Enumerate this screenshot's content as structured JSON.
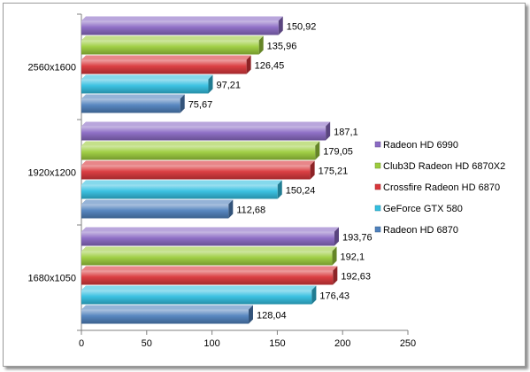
{
  "chart_data": {
    "type": "bar",
    "orientation": "horizontal",
    "categories": [
      "1680x1050",
      "1920x1200",
      "2560x1600"
    ],
    "series": [
      {
        "name": "Radeon HD 6870",
        "values": [
          128.04,
          112.68,
          75.67
        ],
        "labels": [
          "128,04",
          "112,68",
          "75,67"
        ],
        "color": "#4f81bd"
      },
      {
        "name": "GeForce GTX 580",
        "values": [
          176.43,
          150.24,
          97.21
        ],
        "labels": [
          "176,43",
          "150,24",
          "97,21"
        ],
        "color": "#33bfe0"
      },
      {
        "name": "Crossfire Radeon HD 6870",
        "values": [
          192.63,
          175.21,
          126.45
        ],
        "labels": [
          "192,63",
          "175,21",
          "126,45"
        ],
        "color": "#d9363a"
      },
      {
        "name": "Club3D Radeon HD 6870X2",
        "values": [
          192.1,
          179.05,
          135.96
        ],
        "labels": [
          "192,1",
          "179,05",
          "135,96"
        ],
        "color": "#9ccc3c"
      },
      {
        "name": "Radeon HD 6990",
        "values": [
          193.76,
          187.1,
          150.92
        ],
        "labels": [
          "193,76",
          "187,1",
          "150,92"
        ],
        "color": "#8a6ac4"
      }
    ],
    "xlim": [
      0,
      250
    ],
    "xticks": [
      0,
      50,
      100,
      150,
      200,
      250
    ],
    "title": "",
    "xlabel": "",
    "ylabel": "",
    "grid": false,
    "legend_position": "right"
  }
}
